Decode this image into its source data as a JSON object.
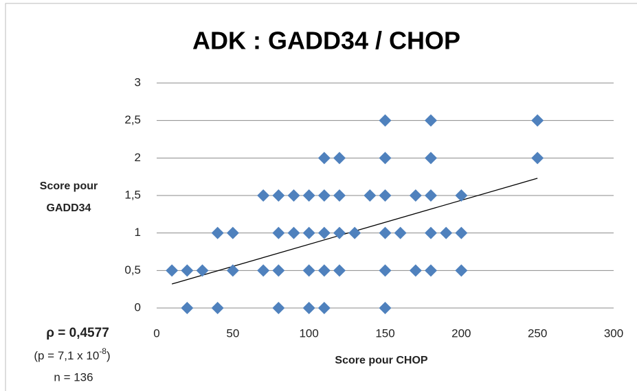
{
  "chart_data": {
    "type": "scatter",
    "title": "ADK : GADD34 / CHOP",
    "xlabel": "Score pour CHOP",
    "ylabel": [
      "Score pour",
      "GADD34"
    ],
    "x": [
      150,
      180,
      250,
      110,
      120,
      150,
      180,
      250,
      70,
      80,
      90,
      100,
      110,
      120,
      140,
      150,
      170,
      180,
      200,
      40,
      50,
      80,
      90,
      100,
      110,
      120,
      130,
      150,
      160,
      180,
      190,
      200,
      10,
      20,
      30,
      50,
      70,
      80,
      100,
      110,
      120,
      150,
      170,
      180,
      200,
      20,
      40,
      80,
      100,
      110,
      150
    ],
    "values": [
      2.5,
      2.5,
      2.5,
      2,
      2,
      2,
      2,
      2,
      1.5,
      1.5,
      1.5,
      1.5,
      1.5,
      1.5,
      1.5,
      1.5,
      1.5,
      1.5,
      1.5,
      1,
      1,
      1,
      1,
      1,
      1,
      1,
      1,
      1,
      1,
      1,
      1,
      1,
      0.5,
      0.5,
      0.5,
      0.5,
      0.5,
      0.5,
      0.5,
      0.5,
      0.5,
      0.5,
      0.5,
      0.5,
      0.5,
      0,
      0,
      0,
      0,
      0,
      0
    ],
    "color": "#4f81bd",
    "trendline": {
      "x": [
        10,
        250
      ],
      "y": [
        0.32,
        1.73
      ],
      "color": "#000000"
    },
    "xlim": [
      0,
      300
    ],
    "xticks": [
      0,
      50,
      100,
      150,
      200,
      250,
      300
    ],
    "ylim": [
      0,
      3
    ],
    "yticks": [
      0,
      {
        "value": 0.5,
        "label": "0,5"
      },
      1,
      {
        "value": 1.5,
        "label": "1,5"
      },
      2,
      {
        "value": 2.5,
        "label": "2,5"
      },
      3
    ],
    "grid": true,
    "annotations": {
      "rho": "ρ = 0,4577",
      "p": "(p = 7,1 x 10",
      "p_exp": "-8",
      "p_close": ")",
      "n": "n = 136"
    }
  }
}
